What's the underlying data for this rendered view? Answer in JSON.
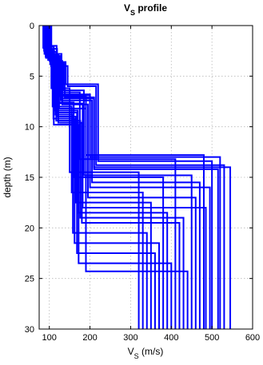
{
  "chart_data": {
    "type": "line",
    "title": "V",
    "title_sub": "S",
    "title_rest": " profile",
    "xlabel": "V",
    "xlabel_sub": "S",
    "xlabel_rest": " (m/s)",
    "ylabel": "depth (m)",
    "xlim": [
      75,
      600
    ],
    "ylim": [
      0,
      30
    ],
    "y_reversed": true,
    "grid": true,
    "x_ticks": [
      100,
      200,
      300,
      400,
      500,
      600
    ],
    "x_tick_labels": [
      "100",
      "200",
      "300",
      "400",
      "500",
      "600"
    ],
    "y_ticks": [
      0,
      5,
      10,
      15,
      20,
      25,
      30
    ],
    "y_tick_labels": [
      "0",
      "5",
      "10",
      "15",
      "20",
      "25",
      "30"
    ],
    "line_color": "#0000ff",
    "layer_structure": {
      "boundaries_m": [
        3,
        7,
        13,
        30
      ],
      "vs_ranges_m_per_s": [
        [
          85,
          110
        ],
        [
          105,
          225
        ],
        [
          145,
          225
        ],
        [
          315,
          545
        ]
      ]
    },
    "series": [
      {
        "vs": [
          85,
          105,
          150,
          320
        ],
        "depth": [
          0,
          2.2,
          6.2,
          14.5,
          30
        ]
      },
      {
        "vs": [
          92,
          110,
          175,
          410
        ],
        "depth": [
          0,
          2.6,
          6.6,
          13.2,
          30
        ]
      },
      {
        "vs": [
          95,
          120,
          190,
          480
        ],
        "depth": [
          0,
          3.0,
          7.0,
          12.8,
          30
        ]
      },
      {
        "vs": [
          100,
          125,
          200,
          520
        ],
        "depth": [
          0,
          3.2,
          6.8,
          13.0,
          30
        ]
      },
      {
        "vs": [
          88,
          130,
          210,
          545
        ],
        "depth": [
          0,
          2.8,
          7.2,
          14.0,
          30
        ]
      },
      {
        "vs": [
          97,
          115,
          160,
          380
        ],
        "depth": [
          0,
          3.4,
          7.6,
          15.0,
          30
        ]
      },
      {
        "vs": [
          105,
          140,
          220,
          500
        ],
        "depth": [
          0,
          3.6,
          5.8,
          13.4,
          30
        ]
      },
      {
        "vs": [
          90,
          108,
          155,
          330
        ],
        "depth": [
          0,
          2.4,
          8.0,
          16.5,
          30
        ]
      },
      {
        "vs": [
          102,
          135,
          185,
          450
        ],
        "depth": [
          0,
          3.8,
          6.4,
          14.8,
          30
        ]
      },
      {
        "vs": [
          93,
          118,
          165,
          350
        ],
        "depth": [
          0,
          2.0,
          9.0,
          17.5,
          30
        ]
      },
      {
        "vs": [
          99,
          128,
          205,
          470
        ],
        "depth": [
          0,
          3.0,
          7.4,
          15.5,
          30
        ]
      },
      {
        "vs": [
          87,
          112,
          170,
          390
        ],
        "depth": [
          0,
          2.5,
          8.4,
          18.5,
          30
        ]
      },
      {
        "vs": [
          104,
          145,
          215,
          530
        ],
        "depth": [
          0,
          4.0,
          6.0,
          13.8,
          30
        ]
      },
      {
        "vs": [
          96,
          122,
          180,
          420
        ],
        "depth": [
          0,
          2.9,
          9.6,
          19.5,
          30
        ]
      },
      {
        "vs": [
          91,
          115,
          158,
          340
        ],
        "depth": [
          0,
          3.1,
          8.8,
          20.5,
          30
        ]
      },
      {
        "vs": [
          101,
          132,
          195,
          460
        ],
        "depth": [
          0,
          3.5,
          7.8,
          17.0,
          30
        ]
      },
      {
        "vs": [
          89,
          110,
          162,
          370
        ],
        "depth": [
          0,
          2.7,
          9.2,
          21.5,
          30
        ]
      },
      {
        "vs": [
          98,
          126,
          200,
          495
        ],
        "depth": [
          0,
          3.3,
          6.9,
          16.0,
          30
        ]
      },
      {
        "vs": [
          94,
          119,
          168,
          360
        ],
        "depth": [
          0,
          2.3,
          8.6,
          22.5,
          30
        ]
      },
      {
        "vs": [
          103,
          138,
          210,
          515
        ],
        "depth": [
          0,
          3.7,
          7.1,
          14.2,
          30
        ]
      },
      {
        "vs": [
          86,
          111,
          172,
          400
        ],
        "depth": [
          0,
          2.1,
          9.8,
          23.5,
          30
        ]
      },
      {
        "vs": [
          100,
          124,
          190,
          440
        ],
        "depth": [
          0,
          3.0,
          8.2,
          24.3,
          30
        ]
      },
      {
        "vs": [
          95,
          117,
          176,
          430
        ],
        "depth": [
          0,
          2.6,
          9.4,
          19.0,
          30
        ]
      },
      {
        "vs": [
          92,
          113,
          182,
          485
        ],
        "depth": [
          0,
          3.2,
          7.7,
          18.0,
          30
        ]
      }
    ]
  }
}
